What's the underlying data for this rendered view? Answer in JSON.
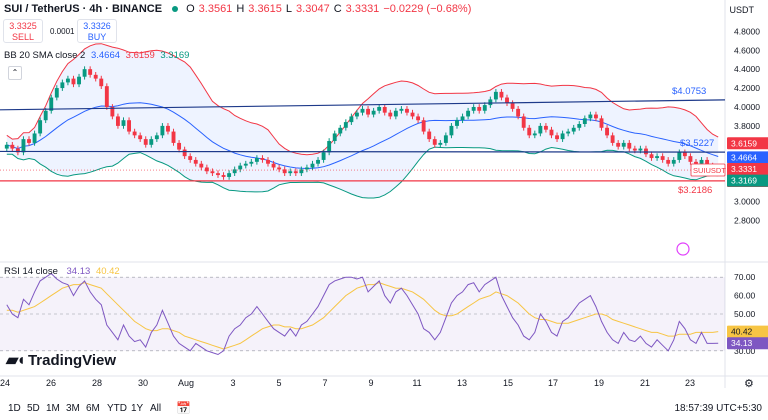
{
  "header": {
    "symbol": "SUI / TetherUS · 4h · BINANCE",
    "o_label": "O",
    "o_value": "3.3561",
    "h_label": "H",
    "h_value": "3.3615",
    "l_label": "L",
    "l_value": "3.3047",
    "c_label": "C",
    "c_value": "3.3331",
    "change": "−0.0229 (−0.68%)"
  },
  "trade": {
    "sell_price": "3.3325",
    "sell_label": "SELL",
    "spread": "0.0001",
    "buy_price": "3.3326",
    "buy_label": "BUY"
  },
  "bb_legend": {
    "label": "BB 20 SMA close 2",
    "basis": "3.4664",
    "upper": "3.6159",
    "lower": "3.3169"
  },
  "rsi_legend": {
    "label": "RSI 14 close",
    "rsi": "34.13",
    "ma": "40.42"
  },
  "currency": "USDT",
  "logo_text": "TradingView",
  "timeframes": [
    "1D",
    "5D",
    "1M",
    "3M",
    "6M",
    "YTD",
    "1Y",
    "All"
  ],
  "clock": "18:57:39 UTC+5:30",
  "colors": {
    "up": "#089981",
    "down": "#F23645",
    "bb_upper": "#F23645",
    "bb_basis": "#2962FF",
    "bb_lower": "#089981",
    "bb_fill": "#2962FF",
    "rsi": "#7E57C2",
    "rsi_ma": "#F7C544",
    "line": "#1E3A8A"
  },
  "chart_data": [
    {
      "type": "candlestick",
      "x_ticks": [
        "24",
        "26",
        "28",
        "30",
        "Aug",
        "3",
        "5",
        "7",
        "9",
        "11",
        "13",
        "15",
        "17",
        "19",
        "21",
        "23"
      ],
      "y_ticks": [
        2.8,
        3.0,
        3.2,
        3.4,
        3.6,
        3.8,
        4.0,
        4.2,
        4.4,
        4.6,
        4.8
      ],
      "ylim": [
        2.72,
        4.92
      ],
      "trend_lines": [
        {
          "label": "$4.0753",
          "start": 3.97,
          "end": 4.0753
        },
        {
          "label": "$3.5227",
          "start": 3.53,
          "end": 3.5227
        },
        {
          "label": "$3.2186",
          "start": 3.2186,
          "end": 3.2186
        }
      ],
      "price_tags": [
        {
          "label": "3.6159",
          "value": 3.6159,
          "color": "#F23645"
        },
        {
          "label": "3.4664",
          "value": 3.4664,
          "color": "#2962FF"
        },
        {
          "label": "SUIUSDT",
          "label2": "3.3331",
          "label3": "02:32:21",
          "value": 3.3331,
          "color": "#F23645"
        },
        {
          "label": "3.3169",
          "value": 3.3169,
          "color": "#089981"
        }
      ],
      "close": [
        3.6,
        3.56,
        3.52,
        3.66,
        3.62,
        3.72,
        3.86,
        3.96,
        4.1,
        4.2,
        4.26,
        4.3,
        4.24,
        4.32,
        4.4,
        4.34,
        4.3,
        4.22,
        4.0,
        3.9,
        3.8,
        3.86,
        3.74,
        3.7,
        3.66,
        3.6,
        3.66,
        3.7,
        3.8,
        3.74,
        3.62,
        3.55,
        3.48,
        3.44,
        3.4,
        3.36,
        3.32,
        3.3,
        3.28,
        3.26,
        3.3,
        3.34,
        3.38,
        3.4,
        3.42,
        3.46,
        3.44,
        3.4,
        3.36,
        3.34,
        3.3,
        3.32,
        3.3,
        3.34,
        3.36,
        3.4,
        3.44,
        3.52,
        3.64,
        3.72,
        3.78,
        3.84,
        3.9,
        3.94,
        3.98,
        3.92,
        3.96,
        4.0,
        3.94,
        3.9,
        3.96,
        3.98,
        3.94,
        3.9,
        3.86,
        3.74,
        3.66,
        3.6,
        3.62,
        3.7,
        3.8,
        3.86,
        3.9,
        3.96,
        4.0,
        3.96,
        4.02,
        4.08,
        4.16,
        4.1,
        4.04,
        3.98,
        3.9,
        3.78,
        3.7,
        3.72,
        3.8,
        3.76,
        3.7,
        3.66,
        3.72,
        3.74,
        3.78,
        3.82,
        3.88,
        3.92,
        3.88,
        3.78,
        3.7,
        3.62,
        3.58,
        3.62,
        3.56,
        3.54,
        3.56,
        3.5,
        3.46,
        3.48,
        3.44,
        3.4,
        3.44,
        3.52,
        3.48,
        3.42,
        3.4,
        3.44,
        3.38,
        3.36,
        3.3331
      ]
    },
    {
      "type": "line",
      "name": "RSI 14 close",
      "ylim": [
        25,
        75
      ],
      "y_ticks": [
        30,
        40,
        50,
        60,
        70
      ],
      "band": [
        30,
        70
      ],
      "rsi": [
        55,
        50,
        48,
        58,
        55,
        62,
        68,
        70,
        72,
        69,
        67,
        66,
        60,
        65,
        68,
        62,
        58,
        55,
        44,
        40,
        36,
        44,
        38,
        35,
        36,
        32,
        40,
        44,
        52,
        45,
        38,
        34,
        32,
        30,
        34,
        32,
        30,
        29,
        28,
        30,
        38,
        42,
        44,
        48,
        50,
        54,
        50,
        46,
        42,
        40,
        38,
        42,
        38,
        44,
        46,
        50,
        54,
        60,
        66,
        68,
        69,
        70,
        70,
        69,
        70,
        62,
        65,
        68,
        60,
        56,
        62,
        64,
        60,
        55,
        50,
        42,
        40,
        36,
        40,
        48,
        56,
        60,
        62,
        66,
        67,
        62,
        66,
        68,
        70,
        60,
        54,
        48,
        44,
        38,
        36,
        40,
        50,
        46,
        40,
        38,
        46,
        48,
        52,
        56,
        58,
        60,
        54,
        46,
        40,
        36,
        34,
        40,
        36,
        35,
        38,
        34,
        32,
        36,
        33,
        30,
        36,
        46,
        42,
        36,
        34,
        40,
        34,
        34,
        34.13
      ],
      "ma": [
        52,
        52,
        51,
        52,
        53,
        54,
        56,
        58,
        60,
        62,
        64,
        65,
        66,
        66,
        67,
        66,
        65,
        64,
        61,
        58,
        55,
        52,
        49,
        46,
        44,
        42,
        41,
        41,
        42,
        42,
        41,
        40,
        38,
        37,
        36,
        35,
        34,
        33,
        32,
        31,
        32,
        33,
        34,
        36,
        38,
        40,
        42,
        43,
        44,
        44,
        43,
        43,
        42,
        42,
        43,
        44,
        46,
        48,
        51,
        54,
        57,
        60,
        62,
        64,
        65,
        66,
        66,
        67,
        66,
        65,
        64,
        64,
        63,
        62,
        60,
        58,
        55,
        52,
        50,
        49,
        49,
        50,
        52,
        54,
        56,
        58,
        59,
        60,
        62,
        61,
        60,
        58,
        56,
        53,
        50,
        48,
        47,
        47,
        46,
        45,
        45,
        45,
        46,
        47,
        48,
        49,
        50,
        50,
        49,
        47,
        46,
        45,
        44,
        43,
        42,
        41,
        40,
        40,
        39,
        38,
        38,
        39,
        39,
        39,
        40,
        40,
        40,
        40,
        40.42
      ]
    }
  ]
}
